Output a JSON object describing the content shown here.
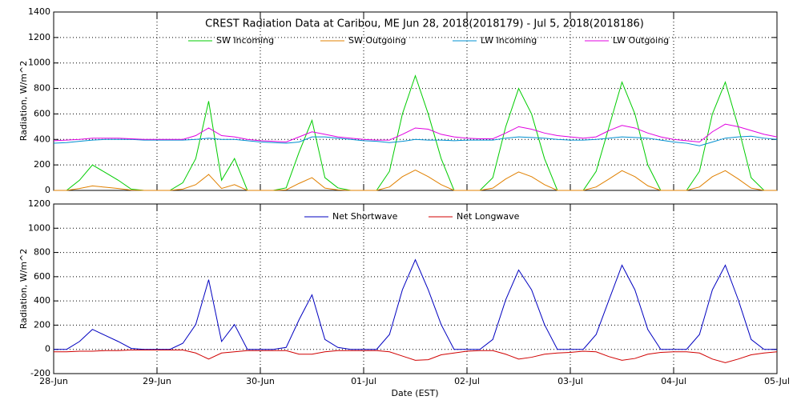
{
  "chart_data": [
    {
      "type": "line",
      "title": "CREST Radiation Data at Caribou, ME   Jun 28, 2018(2018179) - Jul  5, 2018(2018186)",
      "y_label": "Radiation, W/m^2",
      "xlim": [
        0,
        7
      ],
      "ylim": [
        0,
        1400
      ],
      "yticks": [
        0,
        200,
        400,
        600,
        800,
        1000,
        1200,
        1400
      ],
      "grid": true,
      "x": [
        0,
        0.125,
        0.25,
        0.375,
        0.5,
        0.625,
        0.75,
        0.875,
        1,
        1.125,
        1.25,
        1.375,
        1.5,
        1.625,
        1.75,
        1.875,
        2,
        2.125,
        2.25,
        2.375,
        2.5,
        2.625,
        2.75,
        2.875,
        3,
        3.125,
        3.25,
        3.375,
        3.5,
        3.625,
        3.75,
        3.875,
        4,
        4.125,
        4.25,
        4.375,
        4.5,
        4.625,
        4.75,
        4.875,
        5,
        5.125,
        5.25,
        5.375,
        5.5,
        5.625,
        5.75,
        5.875,
        6,
        6.125,
        6.25,
        6.375,
        6.5,
        6.625,
        6.75,
        6.875,
        7
      ],
      "series": [
        {
          "name": "SW Incoming",
          "color": "#00cc00",
          "values": [
            0,
            0,
            80,
            200,
            140,
            80,
            10,
            0,
            0,
            0,
            60,
            250,
            700,
            80,
            250,
            0,
            0,
            0,
            20,
            300,
            550,
            100,
            20,
            0,
            0,
            0,
            150,
            600,
            900,
            600,
            250,
            0,
            0,
            0,
            100,
            500,
            800,
            600,
            250,
            0,
            0,
            0,
            150,
            500,
            850,
            600,
            200,
            0,
            0,
            0,
            150,
            600,
            850,
            500,
            100,
            0,
            0
          ]
        },
        {
          "name": "SW Outgoing",
          "color": "#e08000",
          "values": [
            0,
            0,
            15,
            35,
            25,
            15,
            2,
            0,
            0,
            0,
            10,
            45,
            125,
            15,
            45,
            0,
            0,
            0,
            4,
            55,
            100,
            18,
            4,
            0,
            0,
            0,
            27,
            108,
            160,
            108,
            45,
            0,
            0,
            0,
            18,
            90,
            145,
            108,
            45,
            0,
            0,
            0,
            27,
            90,
            155,
            108,
            36,
            0,
            0,
            0,
            27,
            108,
            155,
            90,
            18,
            0,
            0
          ]
        },
        {
          "name": "LW Incoming",
          "color": "#0090d0",
          "values": [
            370,
            375,
            385,
            395,
            400,
            400,
            400,
            395,
            395,
            395,
            395,
            400,
            410,
            400,
            400,
            390,
            380,
            375,
            370,
            380,
            420,
            420,
            410,
            400,
            390,
            385,
            375,
            385,
            400,
            395,
            395,
            390,
            395,
            395,
            395,
            410,
            420,
            415,
            410,
            400,
            395,
            395,
            400,
            410,
            420,
            415,
            410,
            395,
            380,
            370,
            350,
            380,
            410,
            420,
            425,
            410,
            400
          ]
        },
        {
          "name": "LW Outgoing",
          "color": "#e000e0",
          "values": [
            390,
            395,
            400,
            410,
            410,
            410,
            405,
            400,
            400,
            400,
            400,
            430,
            490,
            430,
            420,
            400,
            390,
            385,
            380,
            420,
            460,
            440,
            420,
            410,
            400,
            395,
            395,
            440,
            490,
            480,
            440,
            420,
            410,
            405,
            405,
            450,
            500,
            480,
            450,
            430,
            420,
            410,
            420,
            470,
            510,
            490,
            450,
            420,
            400,
            390,
            380,
            460,
            520,
            500,
            470,
            440,
            420
          ]
        }
      ]
    },
    {
      "type": "line",
      "y_label": "Radiation, W/m^2",
      "x_label": "Date (EST)",
      "xlim": [
        0,
        7
      ],
      "xticks": [
        {
          "value": 0,
          "label": "28-Jun"
        },
        {
          "value": 1,
          "label": "29-Jun"
        },
        {
          "value": 2,
          "label": "30-Jun"
        },
        {
          "value": 3,
          "label": "01-Jul"
        },
        {
          "value": 4,
          "label": "02-Jul"
        },
        {
          "value": 5,
          "label": "03-Jul"
        },
        {
          "value": 6,
          "label": "04-Jul"
        },
        {
          "value": 7,
          "label": "05-Jul"
        }
      ],
      "ylim": [
        -200,
        1200
      ],
      "yticks": [
        -200,
        0,
        200,
        400,
        600,
        800,
        1000,
        1200
      ],
      "grid": true,
      "x": [
        0,
        0.125,
        0.25,
        0.375,
        0.5,
        0.625,
        0.75,
        0.875,
        1,
        1.125,
        1.25,
        1.375,
        1.5,
        1.625,
        1.75,
        1.875,
        2,
        2.125,
        2.25,
        2.375,
        2.5,
        2.625,
        2.75,
        2.875,
        3,
        3.125,
        3.25,
        3.375,
        3.5,
        3.625,
        3.75,
        3.875,
        4,
        4.125,
        4.25,
        4.375,
        4.5,
        4.625,
        4.75,
        4.875,
        5,
        5.125,
        5.25,
        5.375,
        5.5,
        5.625,
        5.75,
        5.875,
        6,
        6.125,
        6.25,
        6.375,
        6.5,
        6.625,
        6.75,
        6.875,
        7
      ],
      "series": [
        {
          "name": "Net Shortwave",
          "color": "#0000c0",
          "values": [
            0,
            0,
            65,
            165,
            115,
            65,
            8,
            0,
            0,
            0,
            50,
            205,
            575,
            65,
            205,
            0,
            0,
            0,
            16,
            245,
            450,
            82,
            16,
            0,
            0,
            0,
            123,
            492,
            740,
            492,
            205,
            0,
            0,
            0,
            82,
            410,
            655,
            492,
            205,
            0,
            0,
            0,
            123,
            410,
            695,
            492,
            164,
            0,
            0,
            0,
            123,
            492,
            695,
            410,
            82,
            0,
            0
          ]
        },
        {
          "name": "Net Longwave",
          "color": "#d00000",
          "values": [
            -20,
            -20,
            -15,
            -15,
            -10,
            -10,
            -5,
            -5,
            -5,
            -5,
            -5,
            -30,
            -80,
            -30,
            -20,
            -10,
            -10,
            -10,
            -10,
            -40,
            -40,
            -20,
            -10,
            -10,
            -10,
            -10,
            -20,
            -55,
            -90,
            -85,
            -45,
            -30,
            -15,
            -10,
            -10,
            -40,
            -80,
            -65,
            -40,
            -30,
            -25,
            -15,
            -20,
            -60,
            -90,
            -75,
            -40,
            -25,
            -20,
            -20,
            -30,
            -80,
            -110,
            -80,
            -45,
            -30,
            -20
          ]
        }
      ]
    }
  ]
}
